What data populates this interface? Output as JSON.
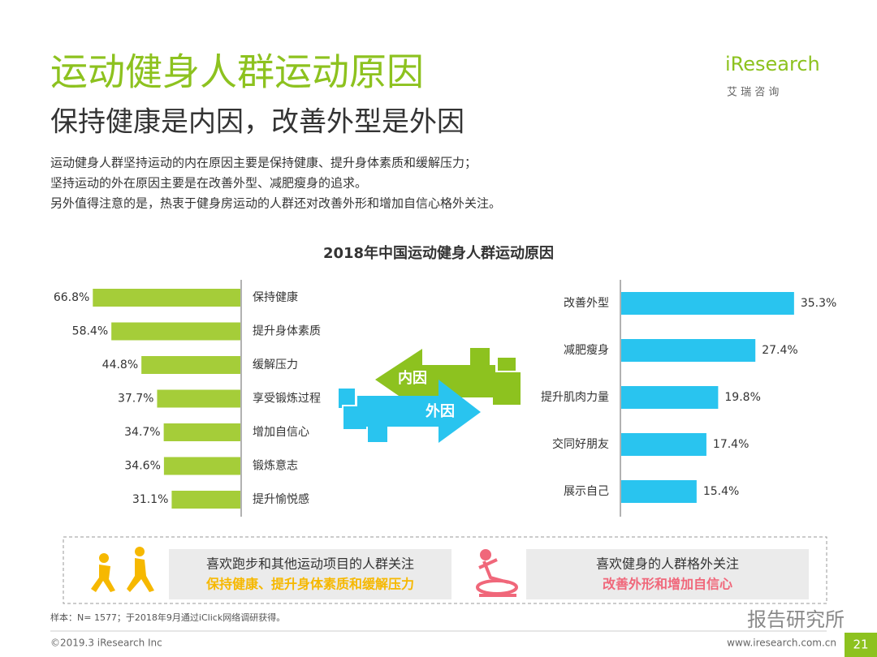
{
  "header": {
    "title": "运动健身人群运动原因",
    "subtitle": "保持健康是内因，改善外型是外因",
    "logo": "iResearch",
    "logo_cn": "艾 瑞 咨 询"
  },
  "intro": [
    "运动健身人群坚持运动的内在原因主要是保持健康、提升身体素质和缓解压力；",
    "坚持运动的外在原因主要是在改善外型、减肥瘦身的追求。",
    "另外值得注意的是，热衷于健身房运动的人群还对改善外形和增加自信心格外关注。"
  ],
  "chart_data": [
    {
      "type": "bar",
      "title": "2018年中国运动健身人群运动原因",
      "orientation": "horizontal",
      "direction": "left",
      "color": "#a5cd39",
      "categories": [
        "保持健康",
        "提升身体素质",
        "缓解压力",
        "享受锻炼过程",
        "增加自信心",
        "锻炼意志",
        "提升愉悦感"
      ],
      "values": [
        66.8,
        58.4,
        44.8,
        37.7,
        34.7,
        34.6,
        31.1
      ],
      "value_labels": [
        "66.8%",
        "58.4%",
        "44.8%",
        "37.7%",
        "34.7%",
        "34.6%",
        "31.1%"
      ]
    },
    {
      "type": "bar",
      "orientation": "horizontal",
      "direction": "right",
      "color": "#29c4ef",
      "categories": [
        "改善外型",
        "减肥瘦身",
        "提升肌肉力量",
        "交同好朋友",
        "展示自己"
      ],
      "values": [
        35.3,
        27.4,
        19.8,
        17.4,
        15.4
      ],
      "value_labels": [
        "35.3%",
        "27.4%",
        "19.8%",
        "17.4%",
        "15.4%"
      ]
    }
  ],
  "arrows": {
    "inner": "内因",
    "outer": "外因"
  },
  "callouts": [
    {
      "title": "喜欢跑步和其他运动项目的人群关注",
      "highlight": "保持健康、提升身体素质和缓解压力"
    },
    {
      "title": "喜欢健身的人群格外关注",
      "highlight": "改善外形和增加自信心"
    }
  ],
  "footer": {
    "note": "样本：N= 1577；于2018年9月通过iClick网络调研获得。",
    "copyright": "©2019.3  iResearch Inc",
    "website": "www.iresearch.com.cn",
    "page": "21",
    "watermark": "报告研究所"
  }
}
